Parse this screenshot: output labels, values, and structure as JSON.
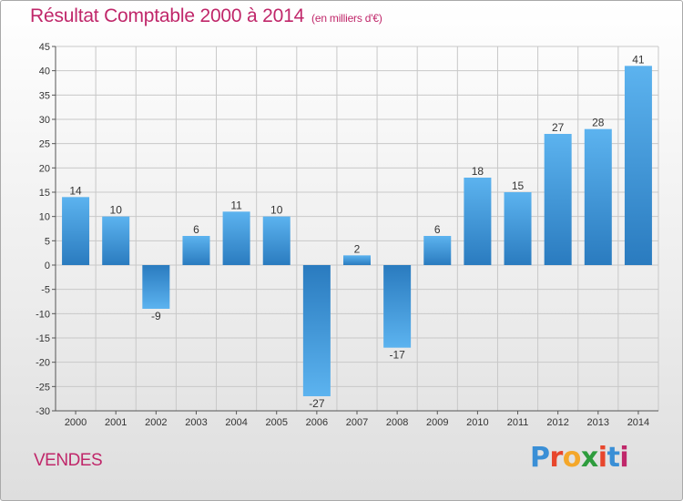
{
  "header": {
    "title": "Résultat Comptable 2000 à 2014",
    "subtitle": "(en milliers d'€)"
  },
  "footer": {
    "place": "VENDES",
    "logo_letters": [
      "P",
      "r",
      "o",
      "x",
      "i",
      "t",
      "i"
    ],
    "logo_colors": [
      "#3a8fd6",
      "#e8462c",
      "#f4a72a",
      "#2e9c3d",
      "#e8462c",
      "#3a8fd6",
      "#c0276a"
    ]
  },
  "colors": {
    "accent": "#c0276a",
    "bar_light": "#5cb3ef",
    "bar_dark": "#2a7bbf",
    "grid": "#c8c8c8"
  },
  "chart_data": {
    "type": "bar",
    "title": "Résultat Comptable 2000 à 2014",
    "subtitle": "(en milliers d'€)",
    "xlabel": "",
    "ylabel": "",
    "categories": [
      "2000",
      "2001",
      "2002",
      "2003",
      "2004",
      "2005",
      "2006",
      "2007",
      "2008",
      "2009",
      "2010",
      "2011",
      "2012",
      "2013",
      "2014"
    ],
    "values": [
      14,
      10,
      -9,
      6,
      11,
      10,
      -27,
      2,
      -17,
      6,
      18,
      15,
      27,
      28,
      41
    ],
    "ylim": [
      -30,
      45
    ],
    "yticks": [
      45,
      40,
      35,
      30,
      25,
      20,
      15,
      10,
      5,
      0,
      -5,
      -10,
      -15,
      -20,
      -25,
      -30
    ],
    "grid": true,
    "legend": "none"
  }
}
